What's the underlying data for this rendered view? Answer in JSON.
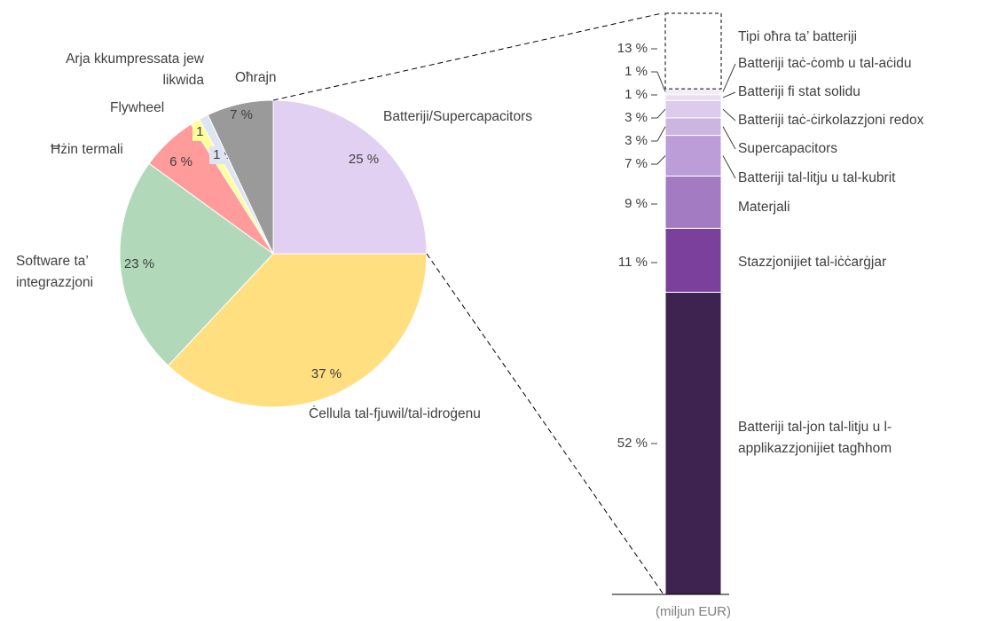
{
  "chart_data": [
    {
      "type": "pie",
      "categories": [
        "Batteriji/Supercapacitors",
        "Ċellula tal-fjuwil/tal-idroġenu",
        "Software ta’ integrazzjoni",
        "Ħżin termali",
        "Flywheel",
        "Arja kkumpressata jew likwida",
        "Oħrajn"
      ],
      "values": [
        25,
        37,
        23,
        6,
        1,
        1,
        7
      ],
      "value_labels": [
        "25 %",
        "37 %",
        "23 %",
        "6 %",
        "1 %",
        "1 %",
        "7 %"
      ],
      "colors": [
        "#e2d0f2",
        "#ffdf80",
        "#b1d9b9",
        "#ff9b9b",
        "#ffff99",
        "#dfe5f0",
        "#9a9a9a"
      ]
    },
    {
      "type": "bar",
      "stacked": true,
      "xlabel": "(miljun EUR)",
      "series": [
        {
          "name": "Batteriji tal-jon tal-litju u l-applikazzjonijiet tagħhom",
          "color": "#3e2250",
          "values": [
            52
          ],
          "value_labels": [
            "52 %"
          ]
        },
        {
          "name": "Stazzjonijiet tal-iċċarġjar",
          "color": "#7a409c",
          "values": [
            11
          ],
          "value_labels": [
            "11 %"
          ]
        },
        {
          "name": "Materjali",
          "color": "#a27bc3",
          "values": [
            9
          ],
          "value_labels": [
            "9 %"
          ]
        },
        {
          "name": "Batteriji tal-litju u tal-kubrit",
          "color": "#bc9dd7",
          "values": [
            7
          ],
          "value_labels": [
            "7 %"
          ]
        },
        {
          "name": "Supercapacitors",
          "color": "#cdb5e2",
          "values": [
            3
          ],
          "value_labels": [
            "3 %"
          ]
        },
        {
          "name": "Batteriji taċ-ċirkolazzjoni redox",
          "color": "#dccbeb",
          "values": [
            3
          ],
          "value_labels": [
            "3 %"
          ]
        },
        {
          "name": "Batteriji fi stat solidu",
          "color": "#e9dcf3",
          "values": [
            1
          ],
          "value_labels": [
            "1 %"
          ]
        },
        {
          "name": "Batteriji taċ-ċomb u tal-aċidu",
          "color": "#f2ebf8",
          "values": [
            1
          ],
          "value_labels": [
            "1 %"
          ]
        },
        {
          "name": "Tipi oħra ta’ batteriji",
          "color": "#ffffff",
          "values": [
            13
          ],
          "value_labels": [
            "13 %"
          ]
        }
      ]
    }
  ]
}
